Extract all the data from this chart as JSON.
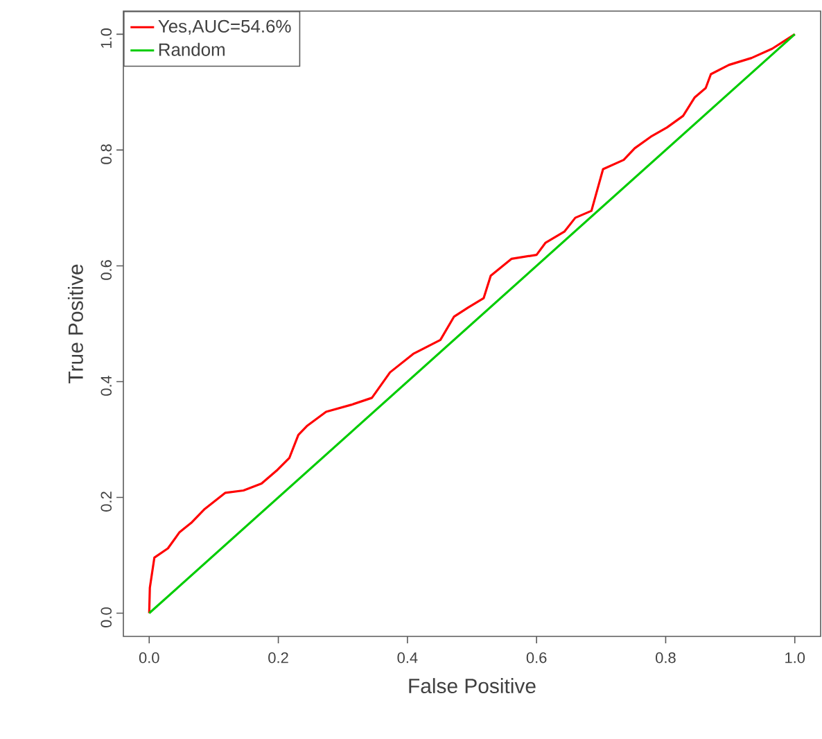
{
  "chart_data": {
    "type": "line",
    "xlabel": "False Positive",
    "ylabel": "True Positive",
    "xlim": [
      -0.04,
      1.04
    ],
    "ylim": [
      -0.04,
      1.04
    ],
    "xticks": [
      {
        "value": 0,
        "label": "0.0"
      },
      0.2,
      0.4,
      0.6,
      0.8,
      {
        "value": 1,
        "label": "1.0"
      }
    ],
    "yticks": [
      {
        "value": 0,
        "label": "0.0"
      },
      0.2,
      0.4,
      0.6,
      0.8,
      {
        "value": 1,
        "label": "1.0"
      }
    ],
    "legend": "top left",
    "grid": false,
    "marker": "none",
    "line_style": "solid",
    "series": [
      {
        "name": "Yes,AUC=54.6%",
        "color": "#ff0000",
        "x": [
          0,
          0.001,
          0.008,
          0.029,
          0.047,
          0.065,
          0.086,
          0.118,
          0.146,
          0.174,
          0.199,
          0.217,
          0.231,
          0.245,
          0.274,
          0.313,
          0.345,
          0.373,
          0.409,
          0.43,
          0.451,
          0.472,
          0.494,
          0.518,
          0.529,
          0.561,
          0.6,
          0.614,
          0.643,
          0.66,
          0.685,
          0.703,
          0.735,
          0.752,
          0.777,
          0.802,
          0.827,
          0.845,
          0.862,
          0.87,
          0.898,
          0.933,
          0.965,
          1.0
        ],
        "values": [
          0,
          0.044,
          0.096,
          0.112,
          0.14,
          0.156,
          0.18,
          0.208,
          0.212,
          0.224,
          0.248,
          0.268,
          0.308,
          0.324,
          0.348,
          0.36,
          0.372,
          0.416,
          0.448,
          0.46,
          0.472,
          0.512,
          0.528,
          0.544,
          0.583,
          0.612,
          0.619,
          0.64,
          0.659,
          0.683,
          0.695,
          0.767,
          0.783,
          0.803,
          0.823,
          0.839,
          0.859,
          0.891,
          0.907,
          0.931,
          0.947,
          0.959,
          0.975,
          1.0
        ]
      },
      {
        "name": "Random",
        "color": "#00cc00",
        "x": [
          0,
          1
        ],
        "values": [
          0,
          1
        ]
      }
    ]
  }
}
